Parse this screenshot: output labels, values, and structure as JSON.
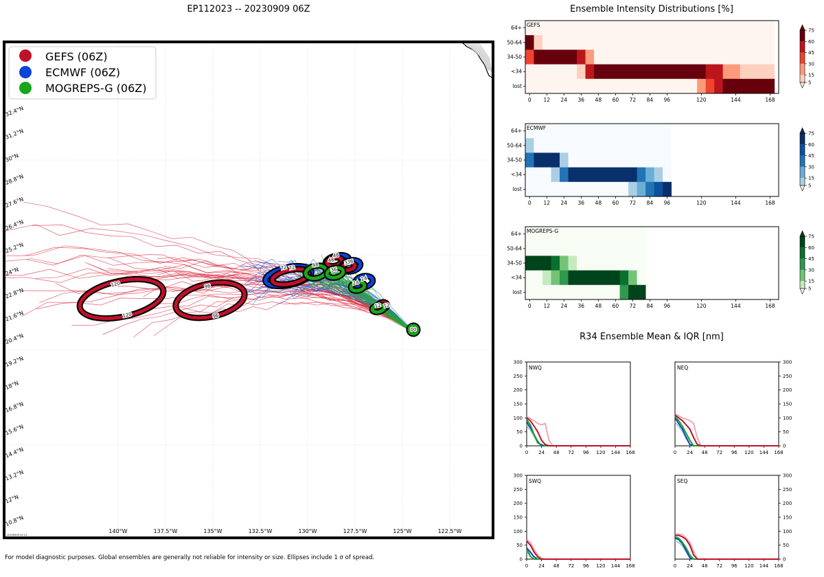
{
  "map": {
    "title": "EP112023 -- 20230909 06Z",
    "footnote": "For model diagnostic purposes. Global ensembles are generally not reliable for intensity or size. Ellipses include 1 σ of spread.",
    "stamp": "20230909.14:13",
    "legend": [
      {
        "label": "GEFS (06Z)",
        "color": "#c0102a"
      },
      {
        "label": "ECMWF (06Z)",
        "color": "#0a45d9"
      },
      {
        "label": "MOGREPS-G (06Z)",
        "color": "#1aa61a"
      }
    ],
    "lon_labels": [
      "140°W",
      "137.5°W",
      "135°W",
      "132.5°W",
      "130°W",
      "127.5°W",
      "125°W",
      "122.5°W"
    ],
    "lat_labels": [
      "32.4°N",
      "31.2°N",
      "30°N",
      "28.8°N",
      "27.6°N",
      "26.4°N",
      "25.2°N",
      "24°N",
      "22.8°N",
      "21.6°N",
      "20.4°N",
      "19.2°N",
      "18°N",
      "16.8°N",
      "15.6°N",
      "14.4°N",
      "13.2°N",
      "12°N",
      "10.8°N"
    ],
    "hour_labels": [
      "120",
      "120",
      "96",
      "96",
      "72",
      "72",
      "48",
      "48",
      "48",
      "36",
      "36",
      "36",
      "24",
      "24",
      "12",
      "12",
      "00"
    ]
  },
  "intensity": {
    "title": "Ensemble Intensity Distributions [%]",
    "rows": [
      "64+",
      "50-64",
      "34-50",
      "<34",
      "lost"
    ],
    "xticks": [
      "0",
      "12",
      "24",
      "36",
      "48",
      "60",
      "72",
      "84",
      "96",
      "120",
      "144",
      "168"
    ],
    "cbar_ticks": [
      "75",
      "60",
      "45",
      "30",
      "15",
      "5"
    ],
    "panels": [
      {
        "name": "GEFS",
        "ramp": [
          "#fff5f0",
          "#fdd1bf",
          "#fc9b7b",
          "#f0442f",
          "#bc151b",
          "#67000d"
        ],
        "last_hour": 174,
        "cells": [
          [
            0,
            0,
            0,
            0,
            0,
            0,
            0,
            0,
            0,
            0,
            0,
            0,
            0,
            0,
            0,
            0,
            0,
            0,
            0,
            0,
            0,
            0,
            0,
            0,
            0,
            0,
            0,
            0,
            0
          ],
          [
            5,
            1,
            0,
            0,
            0,
            0,
            0,
            0,
            0,
            0,
            0,
            0,
            0,
            0,
            0,
            0,
            0,
            0,
            0,
            0,
            0,
            0,
            0,
            0,
            0,
            0,
            0,
            0,
            0
          ],
          [
            3,
            5,
            5,
            5,
            5,
            5,
            4,
            2,
            0,
            0,
            0,
            0,
            0,
            0,
            0,
            0,
            0,
            0,
            0,
            0,
            0,
            0,
            0,
            0,
            0,
            0,
            0,
            0,
            0
          ],
          [
            0,
            0,
            0,
            0,
            0,
            0,
            1,
            4,
            5,
            5,
            5,
            5,
            5,
            5,
            5,
            5,
            5,
            5,
            5,
            5,
            5,
            4,
            4,
            2,
            2,
            1,
            1,
            1,
            1
          ],
          [
            0,
            0,
            0,
            0,
            0,
            0,
            0,
            0,
            0,
            0,
            0,
            0,
            0,
            0,
            0,
            0,
            0,
            0,
            0,
            0,
            2,
            3,
            4,
            5,
            5,
            5,
            5,
            5,
            5
          ]
        ]
      },
      {
        "name": "ECMWF",
        "ramp": [
          "#f7fbff",
          "#aacfe5",
          "#6aaed6",
          "#2373b7",
          "#0b519d",
          "#08306b"
        ],
        "last_hour": 102,
        "cells": [
          [
            0,
            0,
            0,
            0,
            0,
            0,
            0,
            0,
            0,
            0,
            0,
            0,
            0,
            0,
            0,
            0,
            0
          ],
          [
            1,
            0,
            0,
            0,
            0,
            0,
            0,
            0,
            0,
            0,
            0,
            0,
            0,
            0,
            0,
            0,
            0
          ],
          [
            3,
            5,
            5,
            5,
            1,
            0,
            0,
            0,
            0,
            0,
            0,
            0,
            0,
            0,
            0,
            0,
            0
          ],
          [
            0,
            0,
            0,
            1,
            3,
            5,
            5,
            5,
            5,
            5,
            5,
            5,
            5,
            3,
            2,
            1,
            0
          ],
          [
            0,
            0,
            0,
            0,
            0,
            0,
            0,
            0,
            0,
            0,
            0,
            0,
            1,
            2,
            3,
            4,
            5
          ]
        ]
      },
      {
        "name": "MOGREPS-G",
        "ramp": [
          "#f7fcf5",
          "#c7e9c0",
          "#74c476",
          "#2f974e",
          "#0b6f2e",
          "#00441b"
        ],
        "last_hour": 84,
        "cells": [
          [
            0,
            0,
            0,
            0,
            0,
            0,
            0,
            0,
            0,
            0,
            0,
            0,
            0,
            0
          ],
          [
            0,
            0,
            0,
            0,
            0,
            0,
            0,
            0,
            0,
            0,
            0,
            0,
            0,
            0
          ],
          [
            5,
            5,
            5,
            4,
            2,
            1,
            0,
            0,
            0,
            0,
            0,
            0,
            0,
            0
          ],
          [
            0,
            0,
            1,
            2,
            3,
            5,
            5,
            5,
            5,
            5,
            5,
            4,
            2,
            0
          ],
          [
            0,
            0,
            0,
            0,
            0,
            0,
            0,
            0,
            0,
            0,
            0,
            3,
            5,
            5
          ]
        ]
      }
    ]
  },
  "r34": {
    "title": "R34 Ensemble Mean & IQR [nm]",
    "yticks": [
      "300",
      "250",
      "200",
      "150",
      "100",
      "50",
      "0"
    ],
    "xticks": [
      "0",
      "24",
      "48",
      "72",
      "96",
      "120",
      "144",
      "168"
    ],
    "quadrants": [
      {
        "name": "NWQ",
        "gefs": [
          [
            0,
            100
          ],
          [
            6,
            90
          ],
          [
            12,
            70
          ],
          [
            18,
            50
          ],
          [
            24,
            20
          ],
          [
            30,
            5
          ],
          [
            36,
            0
          ],
          [
            168,
            0
          ]
        ],
        "gefs_iqr": [
          [
            0,
            105
          ],
          [
            12,
            90
          ],
          [
            18,
            80
          ],
          [
            24,
            75
          ],
          [
            30,
            80
          ],
          [
            36,
            20
          ],
          [
            42,
            0
          ]
        ],
        "ecmwf": [
          [
            0,
            85
          ],
          [
            6,
            65
          ],
          [
            12,
            40
          ],
          [
            18,
            15
          ],
          [
            24,
            0
          ],
          [
            96,
            0
          ]
        ],
        "mogreps": [
          [
            0,
            95
          ],
          [
            6,
            75
          ],
          [
            12,
            40
          ],
          [
            18,
            10
          ],
          [
            24,
            5
          ],
          [
            30,
            0
          ],
          [
            84,
            0
          ]
        ]
      },
      {
        "name": "NEQ",
        "gefs": [
          [
            0,
            110
          ],
          [
            6,
            100
          ],
          [
            12,
            90
          ],
          [
            18,
            75
          ],
          [
            24,
            60
          ],
          [
            30,
            30
          ],
          [
            36,
            5
          ],
          [
            42,
            0
          ],
          [
            168,
            0
          ]
        ],
        "gefs_iqr": [
          [
            0,
            115
          ],
          [
            12,
            100
          ],
          [
            24,
            90
          ],
          [
            30,
            80
          ],
          [
            36,
            30
          ],
          [
            42,
            0
          ]
        ],
        "ecmwf": [
          [
            0,
            100
          ],
          [
            6,
            80
          ],
          [
            12,
            60
          ],
          [
            18,
            30
          ],
          [
            24,
            5
          ],
          [
            30,
            0
          ],
          [
            96,
            0
          ]
        ],
        "mogreps": [
          [
            0,
            105
          ],
          [
            6,
            90
          ],
          [
            12,
            70
          ],
          [
            18,
            45
          ],
          [
            24,
            20
          ],
          [
            30,
            0
          ],
          [
            84,
            0
          ]
        ]
      },
      {
        "name": "SWQ",
        "gefs": [
          [
            0,
            65
          ],
          [
            6,
            50
          ],
          [
            12,
            25
          ],
          [
            18,
            8
          ],
          [
            24,
            0
          ],
          [
            168,
            0
          ]
        ],
        "gefs_iqr": [
          [
            0,
            70
          ],
          [
            6,
            60
          ],
          [
            12,
            35
          ],
          [
            18,
            15
          ],
          [
            24,
            3
          ],
          [
            30,
            0
          ]
        ],
        "ecmwf": [
          [
            0,
            40
          ],
          [
            6,
            25
          ],
          [
            12,
            8
          ],
          [
            18,
            0
          ],
          [
            96,
            0
          ]
        ],
        "mogreps": [
          [
            0,
            35
          ],
          [
            6,
            10
          ],
          [
            12,
            0
          ],
          [
            84,
            0
          ]
        ]
      },
      {
        "name": "SEQ",
        "gefs": [
          [
            0,
            85
          ],
          [
            6,
            85
          ],
          [
            12,
            80
          ],
          [
            18,
            70
          ],
          [
            24,
            50
          ],
          [
            30,
            15
          ],
          [
            36,
            0
          ],
          [
            168,
            0
          ]
        ],
        "gefs_iqr": [
          [
            0,
            90
          ],
          [
            12,
            88
          ],
          [
            24,
            60
          ],
          [
            30,
            30
          ],
          [
            36,
            0
          ]
        ],
        "ecmwf": [
          [
            0,
            75
          ],
          [
            6,
            70
          ],
          [
            12,
            55
          ],
          [
            18,
            30
          ],
          [
            24,
            5
          ],
          [
            30,
            0
          ],
          [
            96,
            0
          ]
        ],
        "mogreps": [
          [
            0,
            80
          ],
          [
            6,
            75
          ],
          [
            12,
            60
          ],
          [
            18,
            40
          ],
          [
            24,
            15
          ],
          [
            30,
            0
          ],
          [
            84,
            0
          ]
        ]
      }
    ]
  },
  "chart_data": [
    {
      "type": "map",
      "title": "EP112023 -- 20230909 06Z",
      "series": [
        {
          "name": "GEFS (06Z)",
          "positions": [
            {
              "hour": 0,
              "lon": -124.4,
              "lat": 20.9
            },
            {
              "hour": 12,
              "lon": -125.8,
              "lat": 21.6
            },
            {
              "hour": 24,
              "lon": -127.2,
              "lat": 23.3
            },
            {
              "hour": 36,
              "lon": -128.0,
              "lat": 23.9
            },
            {
              "hour": 48,
              "lon": -129.2,
              "lat": 24.2
            },
            {
              "hour": 72,
              "lon": -131.0,
              "lat": 23.6
            },
            {
              "hour": 96,
              "lon": -134.8,
              "lat": 22.5
            },
            {
              "hour": 120,
              "lon": -140.1,
              "lat": 22.5
            }
          ]
        },
        {
          "name": "ECMWF (06Z)",
          "positions": [
            {
              "hour": 0,
              "lon": -124.4,
              "lat": 20.9
            },
            {
              "hour": 24,
              "lon": -127.2,
              "lat": 23.4
            },
            {
              "hour": 36,
              "lon": -127.7,
              "lat": 24.1
            },
            {
              "hour": 48,
              "lon": -128.6,
              "lat": 24.5
            },
            {
              "hour": 72,
              "lon": -131.1,
              "lat": 23.6
            }
          ]
        },
        {
          "name": "MOGREPS-G (06Z)",
          "positions": [
            {
              "hour": 0,
              "lon": -124.4,
              "lat": 20.9
            },
            {
              "hour": 12,
              "lon": -126.1,
              "lat": 21.8
            },
            {
              "hour": 24,
              "lon": -127.5,
              "lat": 23.2
            },
            {
              "hour": 36,
              "lon": -128.6,
              "lat": 23.9
            },
            {
              "hour": 48,
              "lon": -129.8,
              "lat": 24.0
            }
          ]
        }
      ]
    },
    {
      "type": "heatmap",
      "title": "Ensemble Intensity Distributions [%]",
      "rows": [
        "64+",
        "50-64",
        "34-50",
        "<34",
        "lost"
      ],
      "x_unit": "hour",
      "xlim": [
        -3,
        174
      ],
      "series": [
        "GEFS",
        "ECMWF",
        "MOGREPS-G"
      ]
    },
    {
      "type": "line",
      "title": "R34 Ensemble Mean & IQR [nm]",
      "ylim": [
        0,
        300
      ],
      "xlim": [
        0,
        168
      ],
      "panels": [
        "NWQ",
        "NEQ",
        "SWQ",
        "SEQ"
      ],
      "series": [
        "GEFS",
        "ECMWF",
        "MOGREPS-G"
      ]
    }
  ]
}
